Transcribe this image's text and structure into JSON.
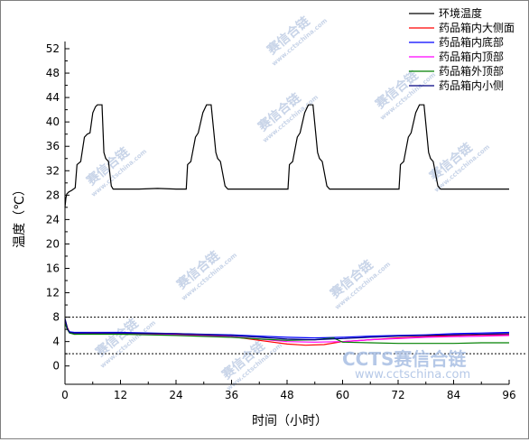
{
  "chart_data": {
    "type": "line",
    "xlabel": "时间（小时）",
    "ylabel": "温度（℃）",
    "xlim": [
      0,
      96
    ],
    "ylim": [
      -3,
      52
    ],
    "xticks": [
      0,
      12,
      24,
      36,
      48,
      60,
      72,
      84,
      96
    ],
    "yticks": [
      0,
      4,
      8,
      12,
      16,
      20,
      24,
      28,
      32,
      36,
      40,
      44,
      48,
      52
    ],
    "xtick_labels": [
      "0",
      "12",
      "24",
      "36",
      "48",
      "60",
      "72",
      "84",
      "96"
    ],
    "ytick_labels": [
      "0",
      "4",
      "8",
      "12",
      "16",
      "20",
      "24",
      "28",
      "32",
      "36",
      "40",
      "44",
      "48",
      "52"
    ],
    "reference_lines": [
      8,
      2
    ],
    "legend_position": "top-right",
    "series": [
      {
        "name": "环境温度",
        "color": "#000000",
        "x": [
          0,
          0.2,
          0.4,
          0.8,
          1.5,
          2.2,
          2.6,
          3.4,
          4.2,
          4.8,
          5.4,
          6.0,
          6.6,
          7.0,
          8.0,
          8.4,
          8.8,
          9.4,
          10.0,
          10.4,
          11.0,
          12.0,
          16,
          20,
          24,
          26.2,
          26.5,
          27.2,
          28.2,
          28.8,
          29.8,
          30.6,
          31.6,
          32.6,
          33.0,
          33.6,
          34.6,
          35.2,
          36,
          40,
          44,
          48,
          48.2,
          48.5,
          49.2,
          50.2,
          50.8,
          51.8,
          52.6,
          53.6,
          54.6,
          55.0,
          55.6,
          56.6,
          57.2,
          58,
          64,
          70,
          72.2,
          72.5,
          73.2,
          74.2,
          74.8,
          75.8,
          76.6,
          77.6,
          78.6,
          79.0,
          79.6,
          80.6,
          81.2,
          82,
          88,
          92,
          96
        ],
        "values": [
          26.0,
          27.5,
          28.2,
          28.5,
          28.8,
          29.2,
          33.0,
          33.5,
          37.5,
          38.0,
          38.2,
          41.5,
          42.5,
          42.8,
          42.8,
          35.0,
          34.0,
          33.5,
          29.5,
          29.0,
          29.0,
          29.0,
          29.0,
          29.1,
          29.0,
          29.0,
          33.0,
          33.5,
          37.5,
          38.2,
          41.5,
          42.8,
          42.8,
          35.0,
          34.0,
          33.5,
          29.5,
          29.0,
          29.0,
          29.0,
          29.0,
          29.0,
          29.0,
          33.0,
          33.5,
          37.5,
          38.2,
          41.5,
          42.8,
          42.8,
          35.0,
          34.0,
          33.5,
          29.5,
          29.0,
          29.0,
          29.0,
          29.0,
          29.0,
          33.0,
          33.5,
          37.5,
          38.2,
          41.5,
          42.8,
          42.8,
          35.0,
          34.0,
          33.5,
          29.5,
          29.0,
          29.0,
          29.0,
          29.0,
          29.0
        ]
      },
      {
        "name": "药品箱内大侧面",
        "color": "#ff0000",
        "x": [
          0,
          0.5,
          1,
          2,
          6,
          12,
          24,
          36,
          42,
          48,
          52,
          56,
          60,
          66,
          72,
          78,
          84,
          90,
          96
        ],
        "values": [
          7.6,
          6.3,
          5.5,
          5.2,
          5.3,
          5.3,
          5.2,
          4.8,
          4.2,
          3.6,
          3.4,
          3.5,
          4.0,
          4.3,
          4.6,
          4.8,
          5.0,
          5.1,
          5.1
        ]
      },
      {
        "name": "药品箱内底部",
        "color": "#0000ff",
        "x": [
          0,
          0.5,
          1,
          2,
          6,
          12,
          24,
          36,
          42,
          48,
          54,
          60,
          66,
          72,
          78,
          84,
          90,
          96
        ],
        "values": [
          7.2,
          6.0,
          5.6,
          5.5,
          5.5,
          5.5,
          5.3,
          5.1,
          4.9,
          4.7,
          4.6,
          4.7,
          4.9,
          5.0,
          5.1,
          5.3,
          5.4,
          5.5
        ]
      },
      {
        "name": "药品箱内顶部",
        "color": "#ff00ff",
        "x": [
          0,
          0.5,
          1,
          2,
          6,
          12,
          24,
          36,
          42,
          48,
          54,
          60,
          66,
          72,
          78,
          84,
          90,
          96
        ],
        "values": [
          7.4,
          6.0,
          5.4,
          5.3,
          5.4,
          5.3,
          5.1,
          4.8,
          4.4,
          4.0,
          3.9,
          4.0,
          4.3,
          4.5,
          4.7,
          4.8,
          4.9,
          5.0
        ]
      },
      {
        "name": "药品箱外顶部",
        "color": "#008000",
        "x": [
          0,
          0.5,
          1,
          2,
          6,
          12,
          24,
          36,
          42,
          48,
          54,
          58,
          60,
          66,
          72,
          78,
          84,
          90,
          96
        ],
        "values": [
          7.0,
          6.0,
          5.4,
          5.2,
          5.2,
          5.2,
          5.0,
          4.7,
          4.4,
          4.2,
          4.3,
          4.6,
          3.9,
          3.8,
          3.7,
          3.7,
          3.7,
          3.8,
          3.8
        ]
      },
      {
        "name": "药品箱内小侧",
        "color": "#000080",
        "x": [
          0,
          0.5,
          1,
          2,
          6,
          12,
          24,
          36,
          42,
          48,
          54,
          60,
          66,
          72,
          78,
          84,
          90,
          96
        ],
        "values": [
          7.8,
          6.2,
          5.5,
          5.4,
          5.4,
          5.4,
          5.3,
          5.0,
          4.7,
          4.4,
          4.3,
          4.5,
          4.7,
          4.9,
          5.0,
          5.1,
          5.2,
          5.3
        ]
      }
    ]
  },
  "watermark": {
    "main": "赛信合链",
    "sub": "www.cctschina.com",
    "logo_text": "CCTS赛信合链",
    "logo_url": "www.cctschina.com"
  }
}
